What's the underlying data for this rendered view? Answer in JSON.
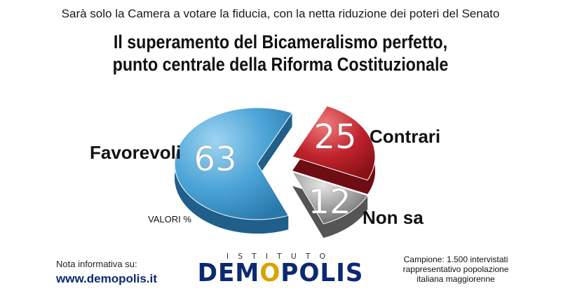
{
  "header": {
    "subtitle": "Sarà solo la Camera a votare la fiducia, con la netta riduzione dei poteri del Senato",
    "title_line1": "Il superamento del Bicameralismo perfetto,",
    "title_line2": "punto centrale della Riforma Costituzionale"
  },
  "chart_data": {
    "type": "pie",
    "unit_label": "VALORI %",
    "slices": [
      {
        "label": "Favorevoli",
        "value": 63,
        "color": "#4aa3d6"
      },
      {
        "label": "Contrari",
        "value": 25,
        "color": "#c0232d"
      },
      {
        "label": "Non sa",
        "value": 12,
        "color": "#9a9a9a"
      }
    ]
  },
  "footer": {
    "note": "Nota informativa su:",
    "url": "www.demopolis.it",
    "logo_top": "ISTITUTO",
    "logo_brand_a": "DEM",
    "logo_brand_o": "O",
    "logo_brand_b": "POLIS",
    "sample_line1": "Campione: 1.500 intervistati",
    "sample_line2": "rappresentativo popolazione",
    "sample_line3": "italiana maggiorenne"
  }
}
